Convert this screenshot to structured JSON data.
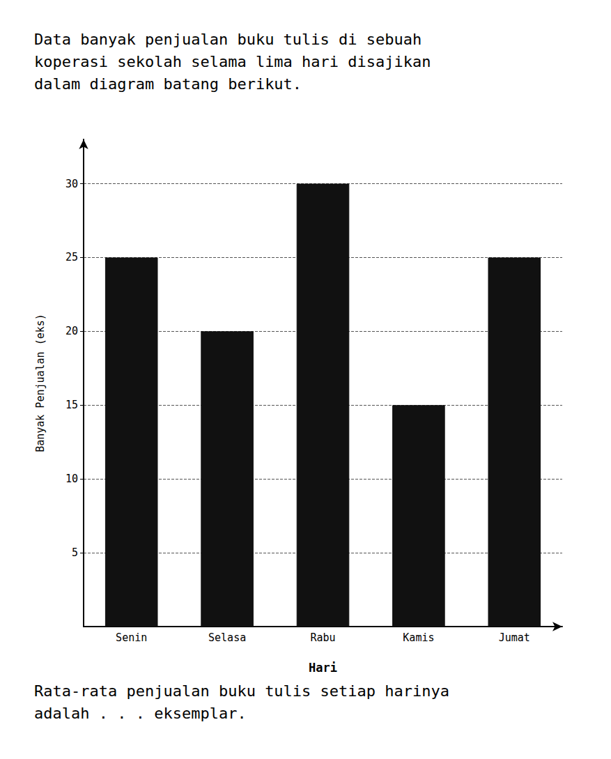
{
  "chart_data": {
    "type": "bar",
    "title": "Data banyak penjualan buku tulis di sebuah\nkoperasi sekolah selama lima hari disajikan\ndalam diagram batang berikut.",
    "annotations": [
      "Rata-rata penjualan buku tulis setiap harinya\nadalah . . . eksemplar."
    ],
    "categories": [
      "Senin",
      "Selasa",
      "Rabu",
      "Kamis",
      "Jumat"
    ],
    "values": [
      25,
      20,
      30,
      15,
      25
    ],
    "color": "#111111",
    "xlabel": "Hari",
    "ylabel": "Banyak Penjualan (eks)",
    "ylim": [
      0,
      33
    ],
    "yticks": [
      5,
      10,
      15,
      20,
      25,
      30
    ],
    "grid": true
  }
}
